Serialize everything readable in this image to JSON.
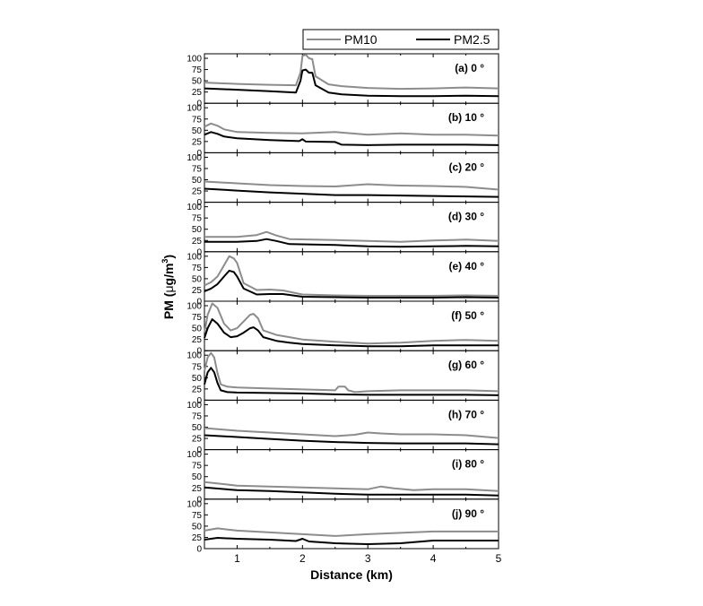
{
  "legend": {
    "pm10_label": "PM10",
    "pm25_label": "PM2.5"
  },
  "axes": {
    "xlabel": "Distance (km)",
    "ylabel_main": "PM  (",
    "ylabel_mu": "μ",
    "ylabel_unit": "g/m",
    "ylabel_exp": "3",
    "ylabel_close": ")"
  },
  "colors": {
    "pm10": "#8c8c8c",
    "pm25": "#000000",
    "axis": "#000000"
  },
  "chart_data": {
    "type": "line",
    "xlabel": "Distance (km)",
    "ylabel": "PM (μg/m3)",
    "xlim": [
      0.5,
      5
    ],
    "ylim": [
      0,
      110
    ],
    "xticks": [
      1,
      2,
      3,
      4,
      5
    ],
    "yticks": [
      0,
      25,
      50,
      75,
      100
    ],
    "panels": [
      {
        "label": "(a) 0 °",
        "series": [
          {
            "name": "PM10",
            "x": [
              0.5,
              1.0,
              1.5,
              1.9,
              1.97,
              2.0,
              2.05,
              2.1,
              2.15,
              2.2,
              2.4,
              2.6,
              3.0,
              3.5,
              4.0,
              4.5,
              5.0
            ],
            "y": [
              46,
              43,
              41,
              40,
              68,
              105,
              108,
              100,
              98,
              60,
              42,
              38,
              34,
              32,
              33,
              35,
              33
            ]
          },
          {
            "name": "PM2.5",
            "x": [
              0.5,
              1.0,
              1.5,
              1.9,
              1.97,
              2.0,
              2.05,
              2.1,
              2.15,
              2.2,
              2.4,
              2.6,
              3.0,
              3.5,
              4.0,
              4.5,
              5.0
            ],
            "y": [
              33,
              30,
              27,
              24,
              50,
              73,
              75,
              68,
              68,
              40,
              24,
              20,
              17,
              16,
              16,
              17,
              16
            ]
          }
        ]
      },
      {
        "label": "(b) 10 °",
        "series": [
          {
            "name": "PM10",
            "x": [
              0.5,
              0.6,
              0.7,
              0.8,
              1.0,
              1.5,
              2.0,
              2.5,
              3.0,
              3.5,
              4.0,
              4.5,
              5.0
            ],
            "y": [
              58,
              65,
              60,
              52,
              46,
              44,
              43,
              46,
              40,
              43,
              40,
              40,
              38
            ]
          },
          {
            "name": "PM2.5",
            "x": [
              0.5,
              0.6,
              0.7,
              0.8,
              1.0,
              1.5,
              1.95,
              2.0,
              2.05,
              2.5,
              2.6,
              3.0,
              3.5,
              4.0,
              4.5,
              5.0
            ],
            "y": [
              40,
              46,
              42,
              36,
              32,
              28,
              26,
              30,
              25,
              24,
              18,
              17,
              18,
              18,
              18,
              17
            ]
          }
        ]
      },
      {
        "label": "(c) 20 °",
        "series": [
          {
            "name": "PM10",
            "x": [
              0.5,
              1.0,
              1.5,
              2.0,
              2.5,
              2.8,
              3.0,
              3.3,
              3.5,
              4.0,
              4.5,
              5.0
            ],
            "y": [
              46,
              42,
              38,
              36,
              35,
              38,
              40,
              38,
              37,
              36,
              34,
              28
            ]
          },
          {
            "name": "PM2.5",
            "x": [
              0.5,
              1.0,
              1.5,
              2.0,
              2.5,
              3.0,
              3.5,
              4.0,
              4.5,
              5.0
            ],
            "y": [
              30,
              26,
              22,
              19,
              16,
              16,
              15,
              14,
              13,
              12
            ]
          }
        ]
      },
      {
        "label": "(d) 30 °",
        "series": [
          {
            "name": "PM10",
            "x": [
              0.5,
              1.0,
              1.3,
              1.45,
              1.6,
              1.8,
              2.5,
              3.0,
              3.5,
              4.0,
              4.5,
              5.0
            ],
            "y": [
              33,
              33,
              37,
              44,
              36,
              28,
              26,
              24,
              22,
              25,
              27,
              24
            ]
          },
          {
            "name": "PM2.5",
            "x": [
              0.5,
              1.0,
              1.3,
              1.45,
              1.6,
              1.8,
              2.5,
              3.0,
              3.5,
              4.0,
              4.5,
              5.0
            ],
            "y": [
              22,
              22,
              24,
              28,
              24,
              17,
              15,
              12,
              11,
              12,
              13,
              12
            ]
          }
        ]
      },
      {
        "label": "(e) 40 °",
        "series": [
          {
            "name": "PM10",
            "x": [
              0.5,
              0.6,
              0.7,
              0.8,
              0.88,
              0.95,
              1.0,
              1.1,
              1.3,
              1.5,
              1.7,
              2.0,
              2.5,
              3.0,
              3.5,
              4.0,
              4.5,
              5.0
            ],
            "y": [
              35,
              42,
              55,
              80,
              100,
              95,
              85,
              40,
              25,
              26,
              24,
              15,
              13,
              12,
              12,
              12,
              13,
              12
            ]
          },
          {
            "name": "PM2.5",
            "x": [
              0.5,
              0.6,
              0.7,
              0.8,
              0.88,
              0.95,
              1.0,
              1.1,
              1.3,
              1.5,
              1.7,
              2.0,
              2.5,
              3.0,
              3.5,
              4.0,
              4.5,
              5.0
            ],
            "y": [
              22,
              28,
              38,
              55,
              68,
              65,
              55,
              28,
              15,
              16,
              16,
              10,
              9,
              8,
              8,
              8,
              9,
              8
            ]
          }
        ]
      },
      {
        "label": "(f) 50 °",
        "series": [
          {
            "name": "PM10",
            "x": [
              0.5,
              0.55,
              0.62,
              0.7,
              0.8,
              0.9,
              1.0,
              1.1,
              1.2,
              1.25,
              1.32,
              1.4,
              1.6,
              1.8,
              2.0,
              2.5,
              3.0,
              3.5,
              4.0,
              4.5,
              5.0
            ],
            "y": [
              40,
              80,
              105,
              95,
              60,
              45,
              50,
              65,
              80,
              82,
              72,
              45,
              35,
              30,
              25,
              20,
              16,
              18,
              22,
              24,
              22
            ]
          },
          {
            "name": "PM2.5",
            "x": [
              0.5,
              0.55,
              0.62,
              0.7,
              0.8,
              0.9,
              1.0,
              1.1,
              1.2,
              1.25,
              1.32,
              1.4,
              1.6,
              1.8,
              2.0,
              2.5,
              3.0,
              3.5,
              4.0,
              4.5,
              5.0
            ],
            "y": [
              28,
              50,
              70,
              60,
              40,
              30,
              32,
              40,
              50,
              52,
              45,
              30,
              22,
              18,
              15,
              12,
              10,
              10,
              12,
              12,
              12
            ]
          }
        ]
      },
      {
        "label": "(g) 60 °",
        "series": [
          {
            "name": "PM10",
            "x": [
              0.5,
              0.55,
              0.6,
              0.65,
              0.7,
              0.75,
              0.85,
              1.0,
              1.5,
              2.0,
              2.5,
              2.55,
              2.65,
              2.7,
              2.8,
              3.0,
              3.5,
              4.0,
              4.5,
              5.0
            ],
            "y": [
              65,
              95,
              105,
              95,
              60,
              35,
              30,
              28,
              26,
              24,
              22,
              30,
              30,
              22,
              18,
              20,
              22,
              22,
              22,
              20
            ]
          },
          {
            "name": "PM2.5",
            "x": [
              0.5,
              0.55,
              0.6,
              0.65,
              0.7,
              0.75,
              0.85,
              1.0,
              1.5,
              2.0,
              2.5,
              3.0,
              3.5,
              4.0,
              4.5,
              5.0
            ],
            "y": [
              35,
              62,
              72,
              62,
              38,
              22,
              18,
              17,
              16,
              15,
              13,
              12,
              12,
              12,
              12,
              11
            ]
          }
        ]
      },
      {
        "label": "(h) 70 °",
        "series": [
          {
            "name": "PM10",
            "x": [
              0.5,
              1.0,
              1.5,
              2.0,
              2.5,
              2.8,
              3.0,
              3.2,
              3.5,
              4.0,
              4.5,
              5.0
            ],
            "y": [
              48,
              42,
              38,
              34,
              30,
              33,
              38,
              36,
              34,
              34,
              32,
              26
            ]
          },
          {
            "name": "PM2.5",
            "x": [
              0.5,
              1.0,
              1.5,
              2.0,
              2.5,
              3.0,
              3.5,
              4.0,
              4.5,
              5.0
            ],
            "y": [
              32,
              28,
              24,
              20,
              17,
              15,
              14,
              14,
              14,
              12
            ]
          }
        ]
      },
      {
        "label": "(i) 80 °",
        "series": [
          {
            "name": "PM10",
            "x": [
              0.5,
              1.0,
              1.5,
              2.0,
              2.5,
              3.0,
              3.2,
              3.4,
              3.7,
              4.0,
              4.5,
              5.0
            ],
            "y": [
              38,
              30,
              28,
              26,
              24,
              22,
              28,
              24,
              20,
              22,
              22,
              18
            ]
          },
          {
            "name": "PM2.5",
            "x": [
              0.5,
              1.0,
              1.5,
              2.0,
              2.5,
              3.0,
              3.5,
              4.0,
              4.5,
              5.0
            ],
            "y": [
              26,
              20,
              18,
              15,
              12,
              10,
              10,
              10,
              10,
              8
            ]
          }
        ]
      },
      {
        "label": "(j) 90 °",
        "series": [
          {
            "name": "PM10",
            "x": [
              0.5,
              0.7,
              1.0,
              1.5,
              2.0,
              2.5,
              3.0,
              3.5,
              4.0,
              4.5,
              5.0
            ],
            "y": [
              40,
              45,
              40,
              36,
              32,
              28,
              32,
              35,
              38,
              38,
              38
            ]
          },
          {
            "name": "PM2.5",
            "x": [
              0.5,
              0.7,
              1.0,
              1.5,
              1.9,
              2.0,
              2.1,
              2.5,
              3.0,
              3.5,
              4.0,
              4.5,
              5.0
            ],
            "y": [
              20,
              24,
              22,
              20,
              17,
              22,
              16,
              12,
              10,
              12,
              18,
              18,
              18
            ]
          }
        ]
      }
    ]
  }
}
